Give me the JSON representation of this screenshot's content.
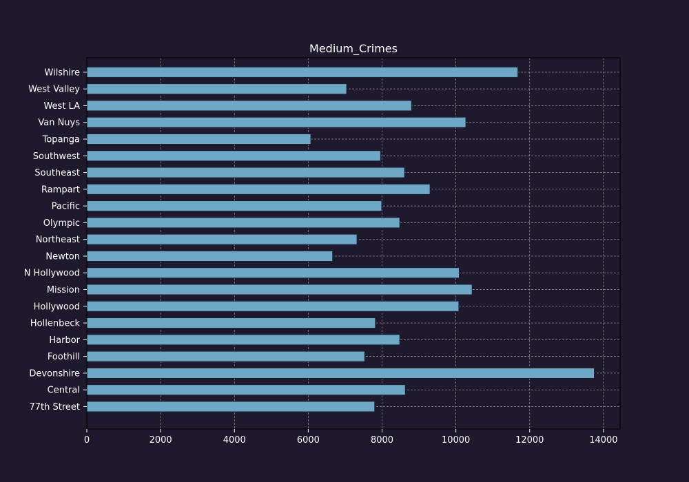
{
  "colors": {
    "background": "#1e192c",
    "bar_fill": "#6fa8c6",
    "bar_edge": "#1b2236",
    "axis": "#000000",
    "grid": "#9a98a8",
    "text": "#ffffff"
  },
  "chart_data": {
    "type": "bar",
    "orientation": "horizontal",
    "title": "Medium_Crimes",
    "xlabel": "",
    "ylabel": "",
    "categories": [
      "77th Street",
      "Central",
      "Devonshire",
      "Foothill",
      "Harbor",
      "Hollenbeck",
      "Hollywood",
      "Mission",
      "N Hollywood",
      "Newton",
      "Northeast",
      "Olympic",
      "Pacific",
      "Rampart",
      "Southeast",
      "Southwest",
      "Topanga",
      "Van Nuys",
      "West LA",
      "West Valley",
      "Wilshire"
    ],
    "values": [
      7800,
      8630,
      13750,
      7530,
      8480,
      7820,
      10080,
      10440,
      10090,
      6660,
      7320,
      8480,
      7990,
      9300,
      8610,
      7960,
      6070,
      10270,
      8800,
      7040,
      11680
    ],
    "xlim": [
      0,
      14450
    ],
    "xticks": [
      0,
      2000,
      4000,
      6000,
      8000,
      10000,
      12000,
      14000
    ],
    "grid": true,
    "grid_style": "dashed",
    "legend": "none"
  }
}
